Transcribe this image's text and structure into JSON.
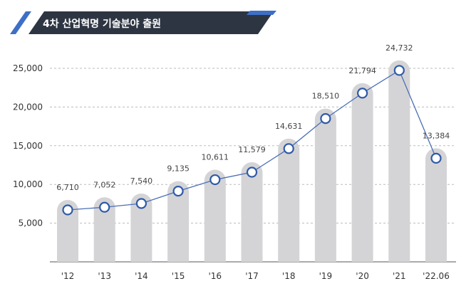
{
  "chart_data": {
    "type": "bar",
    "title": "4차 산업혁명 기술분야 출원",
    "categories": [
      "'12",
      "'13",
      "'14",
      "'15",
      "'16",
      "'17",
      "'18",
      "'19",
      "'20",
      "'21",
      "'22.06"
    ],
    "values": [
      6710,
      7052,
      7540,
      9135,
      10611,
      11579,
      14631,
      18510,
      21794,
      24732,
      13384
    ],
    "value_labels": [
      "6,710",
      "7,052",
      "7,540",
      "9,135",
      "10,611",
      "11,579",
      "14,631",
      "18,510",
      "21,794",
      "24,732",
      "13,384"
    ],
    "y_ticks": [
      5000,
      10000,
      15000,
      20000,
      25000
    ],
    "y_tick_labels": [
      "5,000",
      "10,000",
      "15,000",
      "20,000",
      "25,000"
    ],
    "ylim": [
      0,
      27000
    ],
    "grid": true,
    "overlay_line": true,
    "colors": {
      "bar": "#d4d4d6",
      "line": "#4a6fb5",
      "marker_fill": "#ffffff",
      "marker_stroke": "#2f5aa8",
      "title_bg": "#2e3542",
      "accent": "#3e6fc7",
      "grid": "#bbbbbb"
    }
  }
}
